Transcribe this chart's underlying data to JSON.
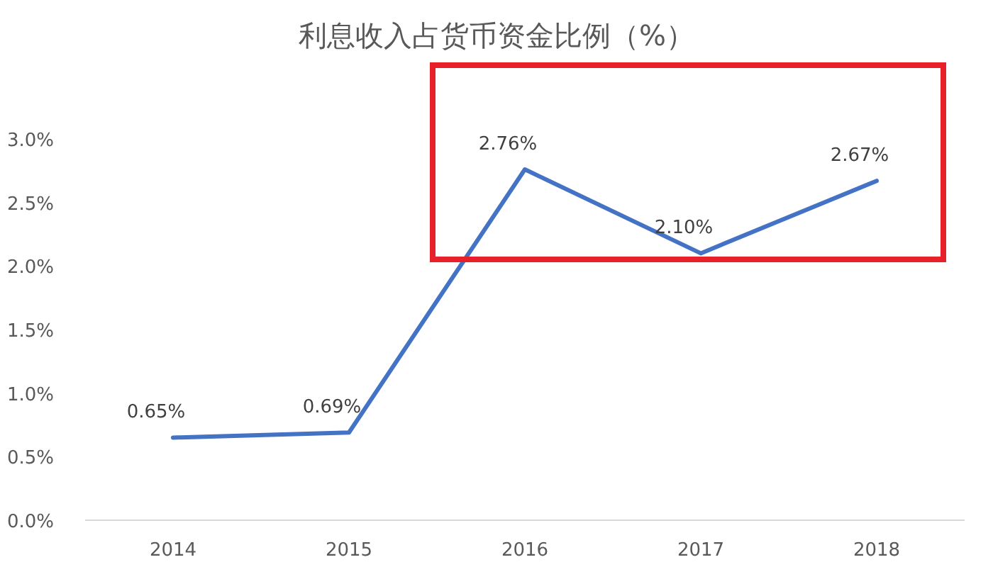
{
  "chart_data": {
    "type": "line",
    "title": "利息收入占货币资金比例（%）",
    "categories": [
      "2014",
      "2015",
      "2016",
      "2017",
      "2018"
    ],
    "series": [
      {
        "color": "#4472c4",
        "values": [
          0.65,
          0.69,
          2.76,
          2.1,
          2.67
        ],
        "value_labels": [
          "0.65%",
          "0.69%",
          "2.76%",
          "2.10%",
          "2.67%"
        ]
      }
    ],
    "ylim": [
      0,
      3.0
    ],
    "yticks": [
      {
        "value": 0,
        "label": "0.0%"
      },
      {
        "value": 0.5,
        "label": "0.5%"
      },
      {
        "value": 1.0,
        "label": "1.0%"
      },
      {
        "value": 1.5,
        "label": "1.5%"
      },
      {
        "value": 2.0,
        "label": "2.0%"
      },
      {
        "value": 2.5,
        "label": "2.5%"
      },
      {
        "value": 3.0,
        "label": "3.0%"
      }
    ],
    "grid": false,
    "marker": "none",
    "line_style": "solid"
  }
}
